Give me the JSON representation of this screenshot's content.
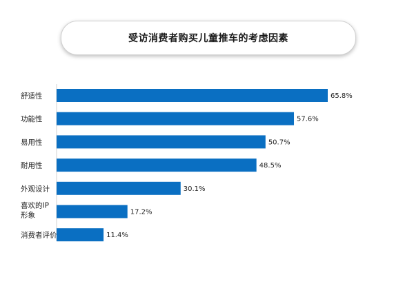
{
  "chart_data": {
    "type": "bar",
    "orientation": "horizontal",
    "title": "受访消费者购买儿童推车的考虑因素",
    "categories": [
      "舒适性",
      "功能性",
      "易用性",
      "耐用性",
      "外观设计",
      "喜欢的IP形象",
      "消费者评价"
    ],
    "values": [
      65.8,
      57.6,
      50.7,
      48.5,
      30.1,
      17.2,
      11.4
    ],
    "value_labels": [
      "65.8%",
      "57.6%",
      "50.7%",
      "48.5%",
      "30.1%",
      "17.2%",
      "11.4%"
    ],
    "unit": "%",
    "grid": false,
    "legend": "none",
    "bar_color": "#0a6fc2"
  }
}
